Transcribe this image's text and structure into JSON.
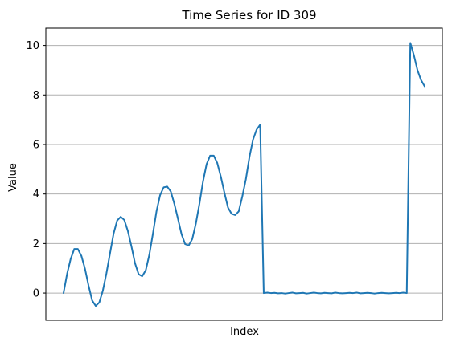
{
  "chart_data": {
    "type": "line",
    "title": "Time Series for ID 309",
    "xlabel": "Index",
    "ylabel": "Value",
    "ylim": [
      -1.1,
      10.7
    ],
    "yticks": [
      0,
      2,
      4,
      6,
      8,
      10
    ],
    "grid": {
      "y": true,
      "x": false
    },
    "legend": "none",
    "colors": {
      "line": "#1f77b4",
      "grid": "#b0b0b0",
      "axis": "#000000"
    },
    "series": [
      {
        "values": [
          0.0,
          0.78,
          1.38,
          1.78,
          1.78,
          1.5,
          0.98,
          0.3,
          -0.3,
          -0.52,
          -0.38,
          0.1,
          0.8,
          1.6,
          2.4,
          2.93,
          3.08,
          2.95,
          2.5,
          1.88,
          1.2,
          0.76,
          0.68,
          0.92,
          1.55,
          2.4,
          3.3,
          3.95,
          4.27,
          4.3,
          4.1,
          3.6,
          3.0,
          2.38,
          1.98,
          1.92,
          2.18,
          2.8,
          3.6,
          4.5,
          5.2,
          5.55,
          5.55,
          5.25,
          4.7,
          4.05,
          3.45,
          3.2,
          3.15,
          3.3,
          3.9,
          4.6,
          5.5,
          6.2,
          6.6,
          6.8,
          0.0,
          0.02,
          0.0,
          0.01,
          -0.01,
          0.0,
          -0.02,
          0.0,
          0.02,
          -0.01,
          0.0,
          0.01,
          -0.02,
          0.0,
          0.02,
          0.0,
          -0.01,
          0.01,
          0.0,
          -0.01,
          0.02,
          0.0,
          -0.01,
          0.0,
          0.01,
          0.0,
          0.02,
          -0.01,
          0.0,
          0.01,
          0.0,
          -0.02,
          0.0,
          0.01,
          0.0,
          -0.01,
          0.0,
          0.01,
          0.0,
          0.02,
          0.0,
          10.1,
          9.6,
          9.0,
          8.6,
          8.35
        ]
      }
    ]
  }
}
